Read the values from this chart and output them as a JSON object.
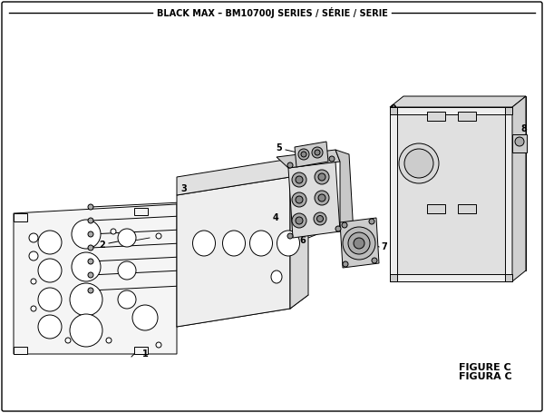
{
  "title": "BLACK MAX – BM10700J SERIES / SÉRIE / SERIE",
  "figure_label": "FIGURE C",
  "figura_label": "FIGURA C",
  "bg_color": "#ffffff",
  "line_color": "#000000",
  "figsize": [
    6.0,
    4.55
  ],
  "dpi": 100
}
